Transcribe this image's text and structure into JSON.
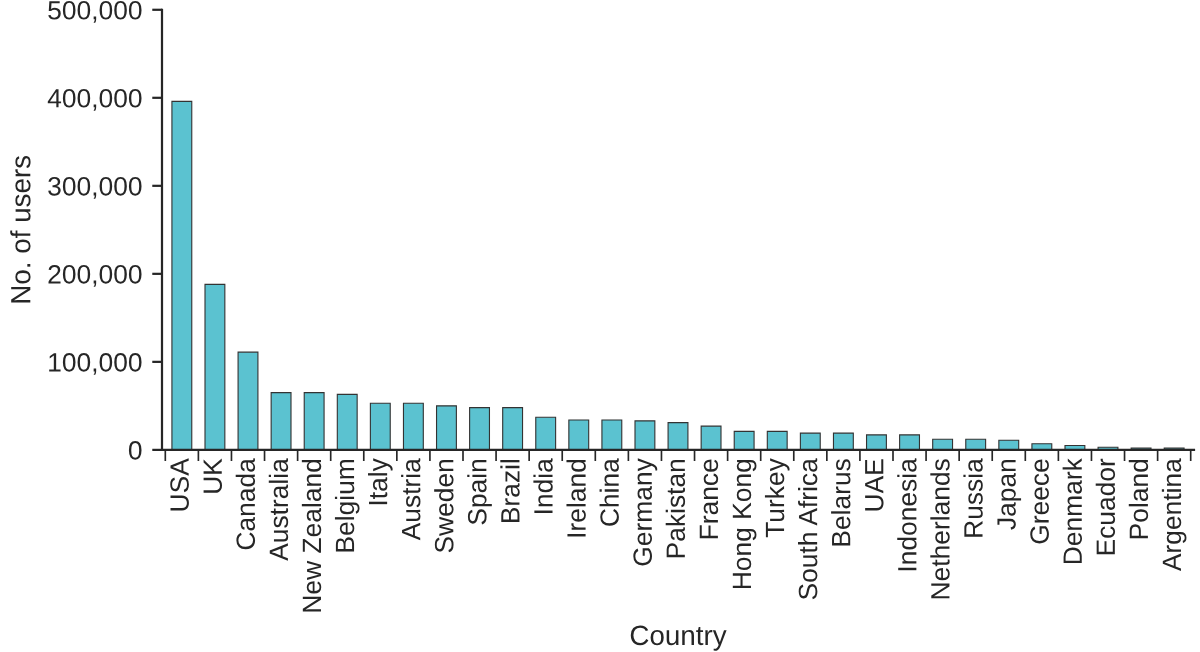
{
  "chart_data": {
    "type": "bar",
    "xlabel": "Country",
    "ylabel": "No. of users",
    "categories": [
      "USA",
      "UK",
      "Canada",
      "Australia",
      "New Zealand",
      "Belgium",
      "Italy",
      "Austria",
      "Sweden",
      "Spain",
      "Brazil",
      "India",
      "Ireland",
      "China",
      "Germany",
      "Pakistan",
      "France",
      "Hong Kong",
      "Turkey",
      "South Africa",
      "Belarus",
      "UAE",
      "Indonesia",
      "Netherlands",
      "Russia",
      "Japan",
      "Greece",
      "Denmark",
      "Ecuador",
      "Poland",
      "Argentina"
    ],
    "values": [
      396000,
      188000,
      111000,
      65000,
      65000,
      63000,
      53000,
      53000,
      50000,
      48000,
      48000,
      37000,
      34000,
      34000,
      33000,
      31000,
      27000,
      21000,
      21000,
      19000,
      19000,
      17000,
      17000,
      12000,
      12000,
      11000,
      7000,
      5000,
      3000,
      2000,
      2000
    ],
    "color": "#5bc2d0",
    "ylim": [
      0,
      500000
    ],
    "yticks": [
      {
        "value": 0,
        "label": "0"
      },
      {
        "value": 100000,
        "label": "100,000"
      },
      {
        "value": 200000,
        "label": "200,000"
      },
      {
        "value": 300000,
        "label": "300,000"
      },
      {
        "value": 400000,
        "label": "400,000"
      },
      {
        "value": 500000,
        "label": "500,000"
      }
    ],
    "grid": false
  }
}
